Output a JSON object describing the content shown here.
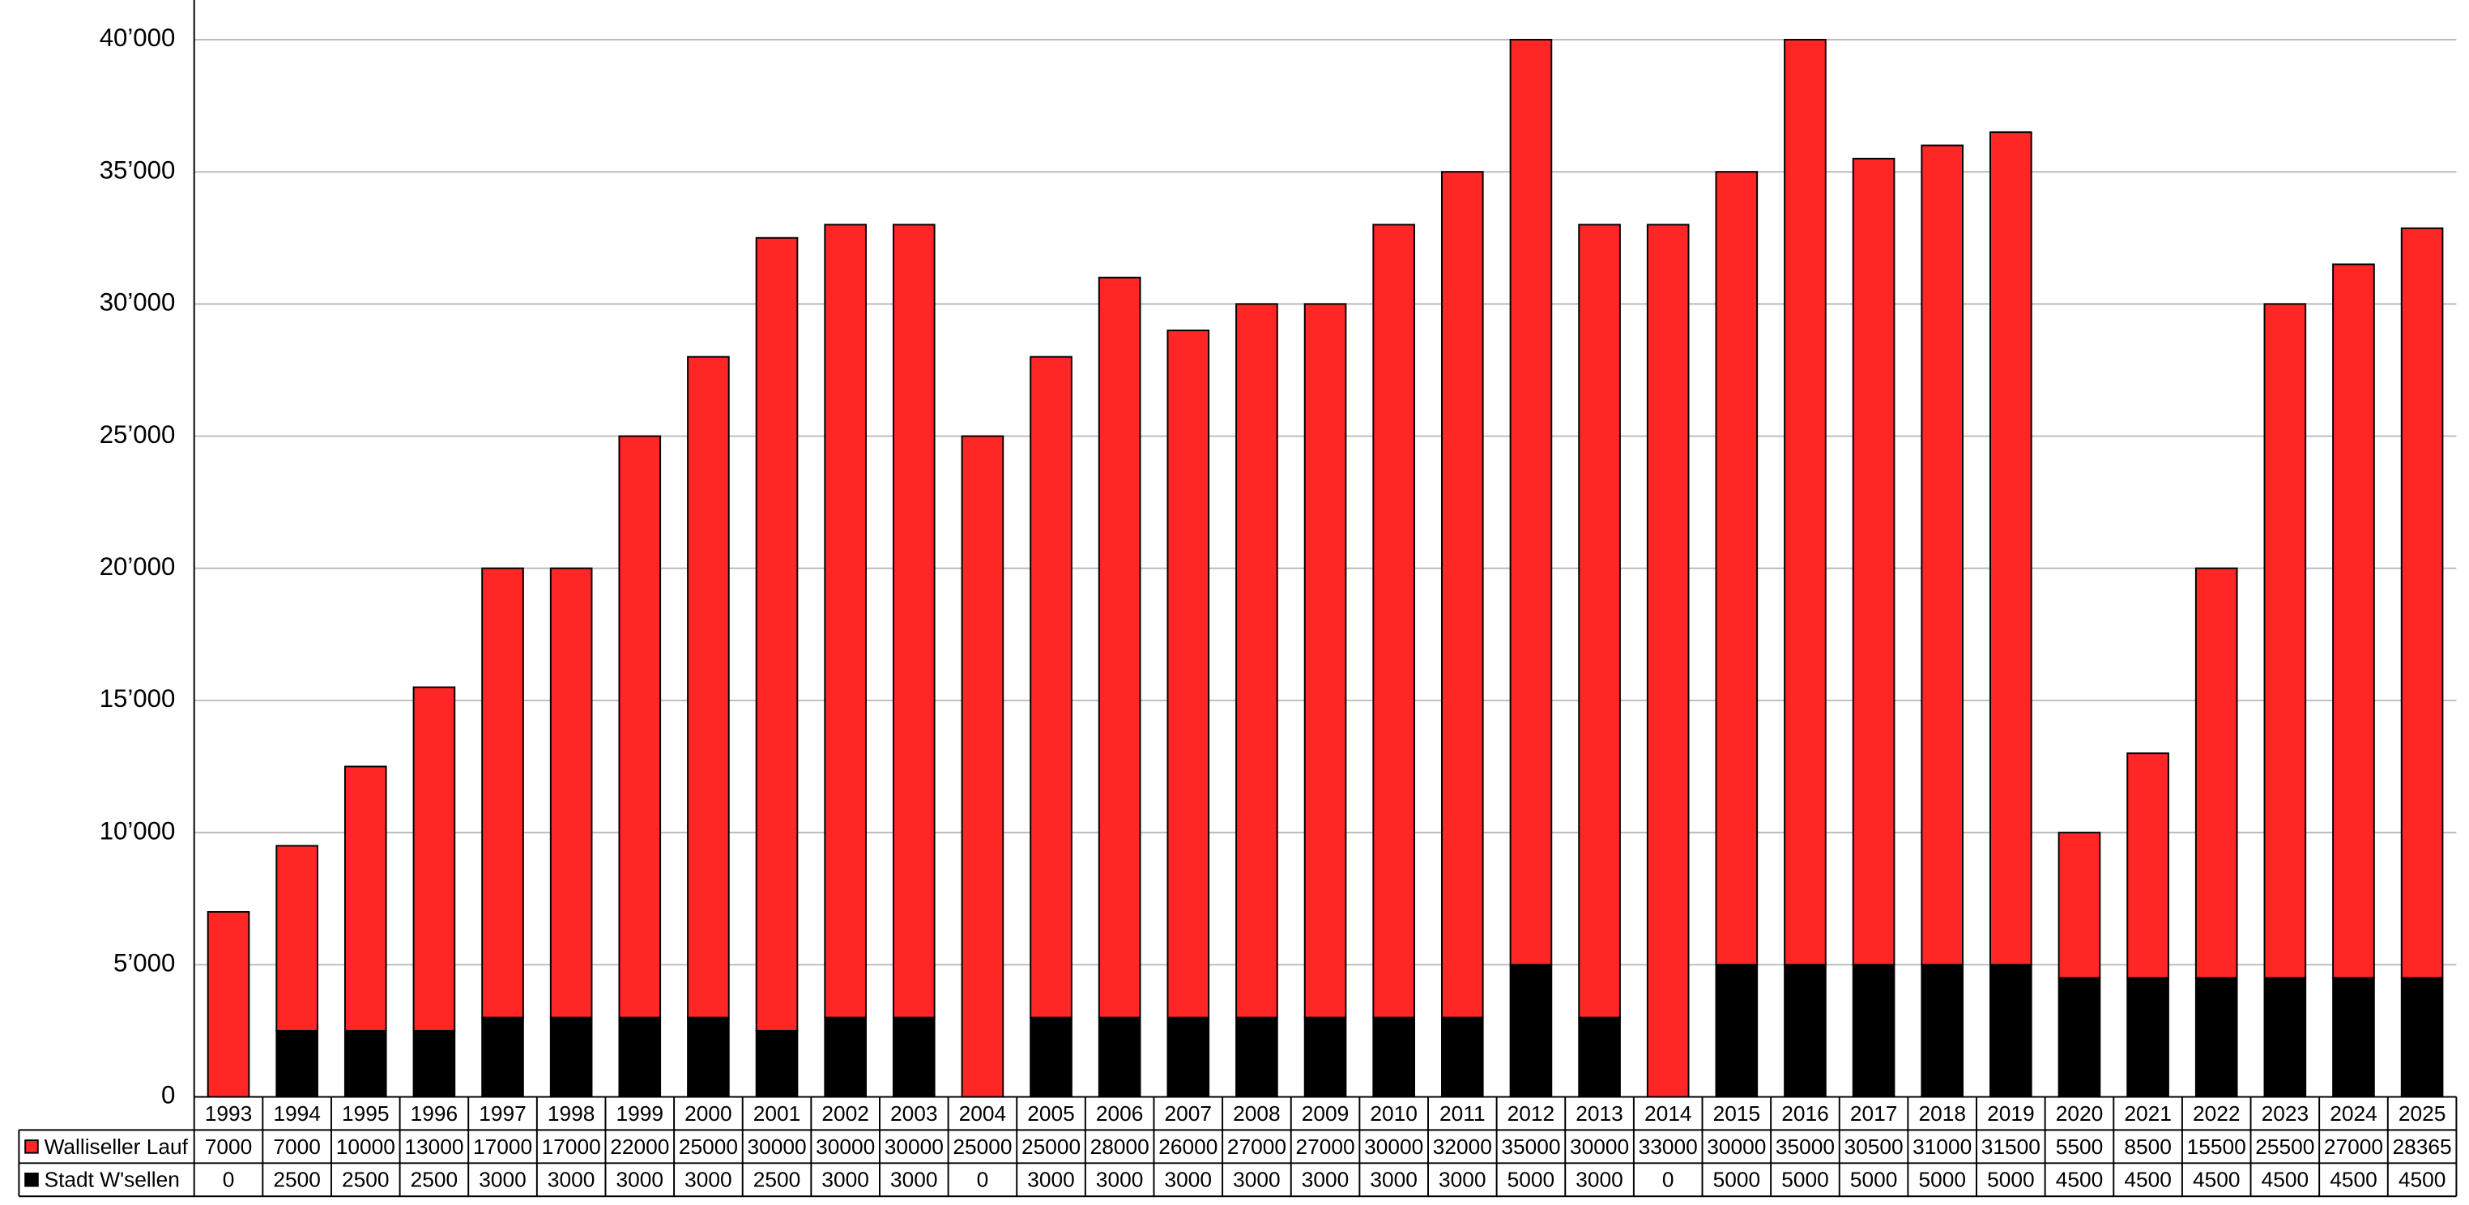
{
  "chart_data": {
    "type": "stacked-bar",
    "categories": [
      "1993",
      "1994",
      "1995",
      "1996",
      "1997",
      "1998",
      "1999",
      "2000",
      "2001",
      "2002",
      "2003",
      "2004",
      "2005",
      "2006",
      "2007",
      "2008",
      "2009",
      "2010",
      "2011",
      "2012",
      "2013",
      "2014",
      "2015",
      "2016",
      "2017",
      "2018",
      "2019",
      "2020",
      "2021",
      "2022",
      "2023",
      "2024",
      "2025"
    ],
    "series": [
      {
        "name": "Walliseller Lauf",
        "color": "#ff2626",
        "values": [
          7000,
          7000,
          10000,
          13000,
          17000,
          17000,
          22000,
          25000,
          30000,
          30000,
          30000,
          25000,
          25000,
          28000,
          26000,
          27000,
          27000,
          30000,
          32000,
          35000,
          30000,
          33000,
          30000,
          35000,
          30500,
          31000,
          31500,
          5500,
          8500,
          15500,
          25500,
          27000,
          28365
        ]
      },
      {
        "name": "Stadt W'sellen",
        "color": "#000000",
        "values": [
          0,
          2500,
          2500,
          2500,
          3000,
          3000,
          3000,
          3000,
          2500,
          3000,
          3000,
          0,
          3000,
          3000,
          3000,
          3000,
          3000,
          3000,
          3000,
          5000,
          3000,
          0,
          5000,
          5000,
          5000,
          5000,
          5000,
          4500,
          4500,
          4500,
          4500,
          4500,
          4500
        ]
      }
    ],
    "ylim": [
      0,
      41500
    ],
    "yticks": [
      0,
      {
        "value": 5000,
        "label": "5’000"
      },
      {
        "value": 10000,
        "label": "10’000"
      },
      {
        "value": 15000,
        "label": "15’000"
      },
      {
        "value": 20000,
        "label": "20’000"
      },
      {
        "value": 25000,
        "label": "25’000"
      },
      {
        "value": 30000,
        "label": "30’000"
      },
      {
        "value": 35000,
        "label": "35’000"
      },
      {
        "value": 40000,
        "label": "40’000"
      }
    ],
    "grid": true
  }
}
